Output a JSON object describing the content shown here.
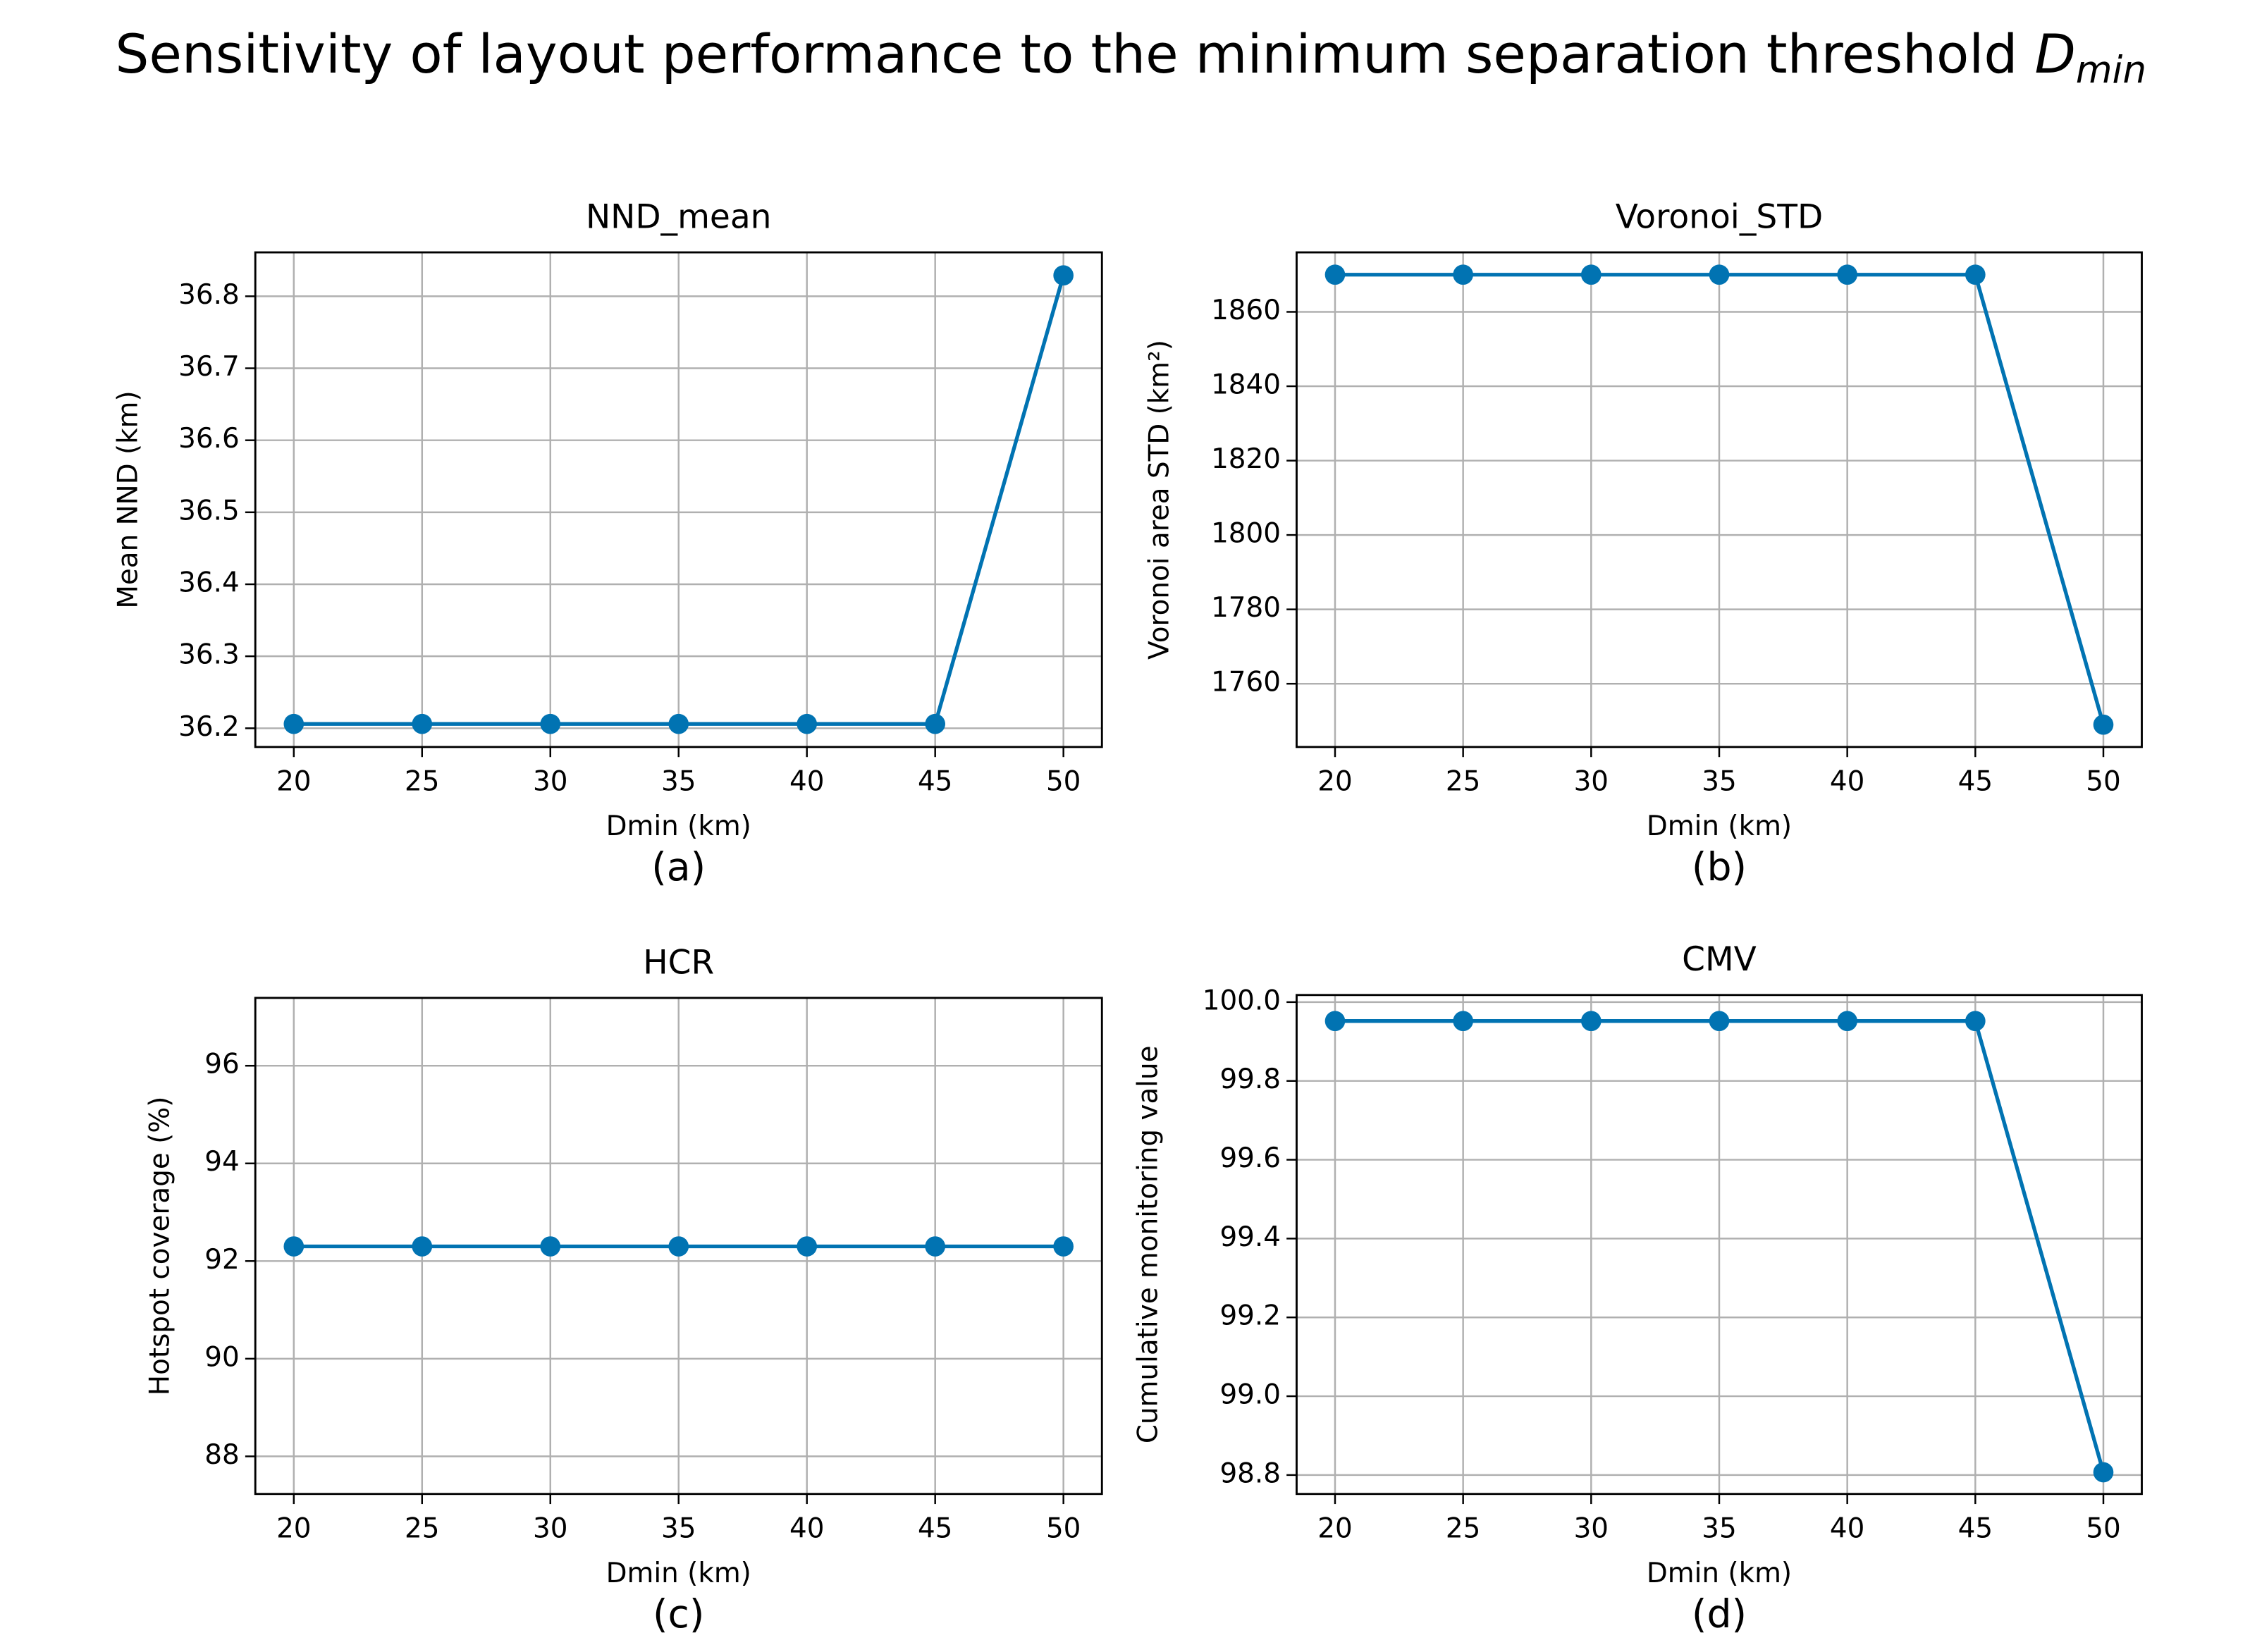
{
  "title": "Sensitivity of layout performance to the minimum separation threshold",
  "title_symbol": "D",
  "title_subscript": "min",
  "chart_data": [
    {
      "type": "line",
      "title": "NND_mean",
      "xlabel": "Dmin (km)",
      "ylabel": "Mean NND (km)",
      "panel_label": "(a)",
      "x": [
        20,
        25,
        30,
        35,
        40,
        45,
        50
      ],
      "series": [
        {
          "color": "#0173b2",
          "values": [
            36.206,
            36.206,
            36.206,
            36.206,
            36.206,
            36.206,
            36.829
          ]
        }
      ],
      "xlim": [
        18.5,
        51.5
      ],
      "xticks": [
        20,
        25,
        30,
        35,
        40,
        45,
        50
      ],
      "ylim": [
        36.174,
        36.861
      ],
      "yticks": [
        36.2,
        36.3,
        36.4,
        36.5,
        36.6,
        36.7,
        36.8
      ],
      "grid": true
    },
    {
      "type": "line",
      "title": "Voronoi_STD",
      "xlabel": "Dmin (km)",
      "ylabel": "Voronoi area STD (km²)",
      "panel_label": "(b)",
      "x": [
        20,
        25,
        30,
        35,
        40,
        45,
        50
      ],
      "series": [
        {
          "color": "#0173b2",
          "values": [
            1870,
            1870,
            1870,
            1870,
            1870,
            1870,
            1749
          ]
        }
      ],
      "xlim": [
        18.5,
        51.5
      ],
      "xticks": [
        20,
        25,
        30,
        35,
        40,
        45,
        50
      ],
      "ylim": [
        1743,
        1876
      ],
      "yticks": [
        1760,
        1780,
        1800,
        1820,
        1840,
        1860
      ],
      "grid": true
    },
    {
      "type": "line",
      "title": "HCR",
      "xlabel": "Dmin (km)",
      "ylabel": "Hotspot coverage (%)",
      "panel_label": "(c)",
      "x": [
        20,
        25,
        30,
        35,
        40,
        45,
        50
      ],
      "series": [
        {
          "color": "#0173b2",
          "values": [
            92.3,
            92.3,
            92.3,
            92.3,
            92.3,
            92.3,
            92.3
          ]
        }
      ],
      "xlim": [
        18.5,
        51.5
      ],
      "xticks": [
        20,
        25,
        30,
        35,
        40,
        45,
        50
      ],
      "ylim": [
        87.23,
        97.39
      ],
      "yticks": [
        88,
        90,
        92,
        94,
        96
      ],
      "grid": true
    },
    {
      "type": "line",
      "title": "CMV",
      "xlabel": "Dmin (km)",
      "ylabel": "Cumulative monitoring value",
      "panel_label": "(d)",
      "x": [
        20,
        25,
        30,
        35,
        40,
        45,
        50
      ],
      "series": [
        {
          "color": "#0173b2",
          "values": [
            99.952,
            99.952,
            99.952,
            99.952,
            99.952,
            99.952,
            98.807
          ]
        }
      ],
      "xlim": [
        18.5,
        51.5
      ],
      "xticks": [
        20,
        25,
        30,
        35,
        40,
        45,
        50
      ],
      "ylim": [
        98.752,
        100.018
      ],
      "yticks": [
        98.8,
        {
          "value": 99.0,
          "label": "99.0"
        },
        99.2,
        99.4,
        99.6,
        99.8,
        {
          "value": 100.0,
          "label": "100.0"
        }
      ],
      "grid": true
    }
  ]
}
